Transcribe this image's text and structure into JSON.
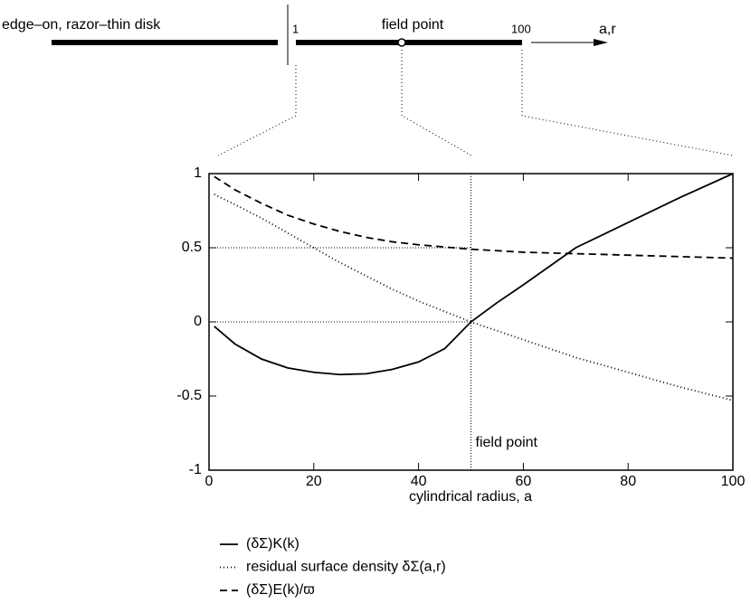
{
  "chart_data": {
    "type": "line",
    "schematic": {
      "label": "edge–on, razor–thin disk",
      "inner": "1",
      "field": "field point",
      "outer": "100",
      "axis": "a,r"
    },
    "xlabel": "cylindrical radius, a",
    "annotation": "field point",
    "field_x": 50,
    "ref_lines": [
      0.5,
      0
    ],
    "xlim": [
      0,
      100
    ],
    "xticks": [
      0,
      20,
      40,
      60,
      80,
      100
    ],
    "ylim": [
      -1,
      1
    ],
    "yticks": [
      -1,
      -0.5,
      0,
      0.5,
      1
    ],
    "x": [
      1,
      5,
      10,
      15,
      20,
      25,
      30,
      35,
      40,
      45,
      50,
      55,
      60,
      70,
      80,
      90,
      100
    ],
    "series": [
      {
        "name": "(δΣ)K(k)",
        "color": "#000",
        "style": "solid",
        "values": [
          -0.03,
          -0.15,
          -0.25,
          -0.31,
          -0.34,
          -0.355,
          -0.35,
          -0.32,
          -0.27,
          -0.18,
          0,
          0.13,
          0.25,
          0.5,
          0.67,
          0.84,
          1
        ]
      },
      {
        "name": "residual surface density δΣ(a,r)",
        "color": "#000",
        "style": "dotted",
        "values": [
          0.86,
          0.79,
          0.7,
          0.6,
          0.5,
          0.4,
          0.31,
          0.22,
          0.14,
          0.07,
          0,
          -0.06,
          -0.12,
          -0.24,
          -0.34,
          -0.44,
          -0.53
        ]
      },
      {
        "name": "(δΣ)E(k)/ϖ",
        "color": "#000",
        "style": "dashed",
        "values": [
          0.98,
          0.89,
          0.8,
          0.72,
          0.66,
          0.61,
          0.57,
          0.54,
          0.52,
          0.505,
          0.49,
          0.48,
          0.47,
          0.46,
          0.45,
          0.44,
          0.43
        ]
      }
    ]
  }
}
